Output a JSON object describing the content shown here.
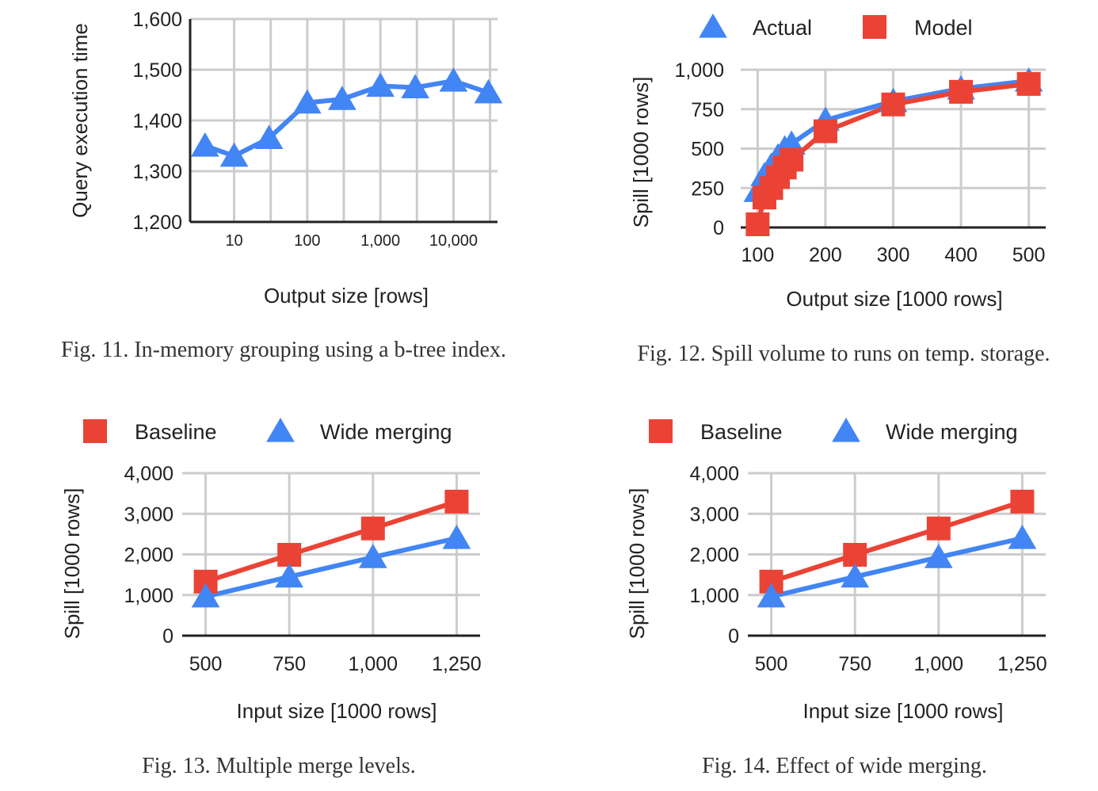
{
  "colors": {
    "actual": "#4285f4",
    "model": "#ea4335",
    "grid": "#cccccc",
    "axis": "#222222"
  },
  "chart_data": [
    {
      "id": "fig11",
      "type": "line",
      "caption": "Fig. 11.  In-memory grouping using a b-tree index.",
      "xlabel": "Output size [rows]",
      "ylabel": "Query execution time",
      "xscale": "log",
      "xlim": [
        2.5,
        40000
      ],
      "ylim": [
        1200,
        1600
      ],
      "xticks": [
        10,
        100,
        1000,
        10000
      ],
      "xtick_labels": [
        "10",
        "100",
        "1,000",
        "10,000"
      ],
      "yticks": [
        1200,
        1300,
        1400,
        1500,
        1600
      ],
      "ytick_labels": [
        "1,200",
        "1,300",
        "1,400",
        "1,500",
        "1,600"
      ],
      "x_gridlines": [
        10,
        31.6,
        100,
        316,
        1000,
        3162,
        10000,
        31623
      ],
      "legend": null,
      "series": [
        {
          "name": "",
          "marker": "triangle",
          "color": "#4285f4",
          "x": [
            4,
            10,
            30,
            100,
            300,
            1000,
            3000,
            10000,
            30000
          ],
          "y": [
            1350,
            1330,
            1365,
            1435,
            1442,
            1468,
            1465,
            1478,
            1455
          ]
        }
      ]
    },
    {
      "id": "fig12",
      "type": "line",
      "caption": "Fig. 12.  Spill volume to runs on temp. storage.",
      "xlabel": "Output size [1000 rows]",
      "ylabel": "Spill [1000 rows]",
      "xscale": "linear",
      "xlim": [
        75,
        525
      ],
      "ylim": [
        0,
        1000
      ],
      "xticks": [
        100,
        200,
        300,
        400,
        500
      ],
      "xtick_labels": [
        "100",
        "200",
        "300",
        "400",
        "500"
      ],
      "yticks": [
        0,
        250,
        500,
        750,
        1000
      ],
      "ytick_labels": [
        "0",
        "250",
        "500",
        "750",
        "1,000"
      ],
      "x_gridlines": [
        100,
        200,
        300,
        400,
        500
      ],
      "legend": "top",
      "series": [
        {
          "name": "Actual",
          "marker": "triangle",
          "color": "#4285f4",
          "x": [
            100,
            110,
            120,
            130,
            140,
            150,
            200,
            300,
            400,
            500
          ],
          "y": [
            230,
            330,
            390,
            450,
            500,
            530,
            680,
            800,
            880,
            930
          ]
        },
        {
          "name": "Model",
          "marker": "square",
          "color": "#ea4335",
          "x": [
            100,
            110,
            120,
            130,
            140,
            150,
            200,
            300,
            400,
            500
          ],
          "y": [
            20,
            190,
            250,
            320,
            380,
            430,
            610,
            780,
            860,
            910
          ]
        }
      ]
    },
    {
      "id": "fig13",
      "type": "line",
      "caption": "Fig. 13.  Multiple merge levels.",
      "xlabel": "Input size [1000 rows]",
      "ylabel": "Spill [1000 rows]",
      "xscale": "linear",
      "xlim": [
        430,
        1320
      ],
      "ylim": [
        0,
        4000
      ],
      "xticks": [
        500,
        750,
        1000,
        1250
      ],
      "xtick_labels": [
        "500",
        "750",
        "1,000",
        "1,250"
      ],
      "yticks": [
        0,
        1000,
        2000,
        3000,
        4000
      ],
      "ytick_labels": [
        "0",
        "1,000",
        "2,000",
        "3,000",
        "4,000"
      ],
      "x_gridlines": [
        500,
        750,
        1000,
        1250
      ],
      "legend": "top",
      "series": [
        {
          "name": "Baseline",
          "marker": "square",
          "color": "#ea4335",
          "x": [
            500,
            750,
            1000,
            1250
          ],
          "y": [
            1330,
            1990,
            2640,
            3300
          ]
        },
        {
          "name": "Wide merging",
          "marker": "triangle",
          "color": "#4285f4",
          "x": [
            500,
            750,
            1000,
            1250
          ],
          "y": [
            960,
            1450,
            1930,
            2400
          ]
        }
      ]
    },
    {
      "id": "fig14",
      "type": "line",
      "caption": "Fig. 14.  Effect of wide merging.",
      "xlabel": "Input size [1000 rows]",
      "ylabel": "Spill [1000 rows]",
      "xscale": "linear",
      "xlim": [
        430,
        1320
      ],
      "ylim": [
        0,
        4000
      ],
      "xticks": [
        500,
        750,
        1000,
        1250
      ],
      "xtick_labels": [
        "500",
        "750",
        "1,000",
        "1,250"
      ],
      "yticks": [
        0,
        1000,
        2000,
        3000,
        4000
      ],
      "ytick_labels": [
        "0",
        "1,000",
        "2,000",
        "3,000",
        "4,000"
      ],
      "x_gridlines": [
        500,
        750,
        1000,
        1250
      ],
      "legend": "top",
      "series": [
        {
          "name": "Baseline",
          "marker": "square",
          "color": "#ea4335",
          "x": [
            500,
            750,
            1000,
            1250
          ],
          "y": [
            1330,
            1990,
            2640,
            3300
          ]
        },
        {
          "name": "Wide merging",
          "marker": "triangle",
          "color": "#4285f4",
          "x": [
            500,
            750,
            1000,
            1250
          ],
          "y": [
            960,
            1450,
            1930,
            2400
          ]
        }
      ]
    }
  ]
}
